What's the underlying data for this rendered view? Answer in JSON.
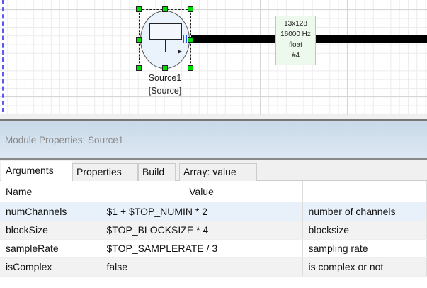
{
  "canvas": {
    "module": {
      "name": "Source1",
      "type": "[Source]"
    },
    "wire_label": {
      "dims": "13x128",
      "rate": "16000 Hz",
      "dtype": "float",
      "index": "#4"
    }
  },
  "panel": {
    "title": "Module Properties: Source1",
    "tabs": [
      {
        "label": "Arguments",
        "active": true
      },
      {
        "label": "Properties"
      },
      {
        "label": "Build"
      },
      {
        "label": "Array: value"
      }
    ],
    "columns": [
      "Name",
      "Value",
      ""
    ],
    "rows": [
      {
        "name": "numChannels",
        "value": "$1 + $TOP_NUMIN * 2",
        "desc": "number of channels"
      },
      {
        "name": "blockSize",
        "value": "$TOP_BLOCKSIZE * 4",
        "desc": "blocksize"
      },
      {
        "name": "sampleRate",
        "value": "$TOP_SAMPLERATE / 3",
        "desc": "sampling rate"
      },
      {
        "name": "isComplex",
        "value": "false",
        "desc": "is complex or not"
      }
    ]
  }
}
